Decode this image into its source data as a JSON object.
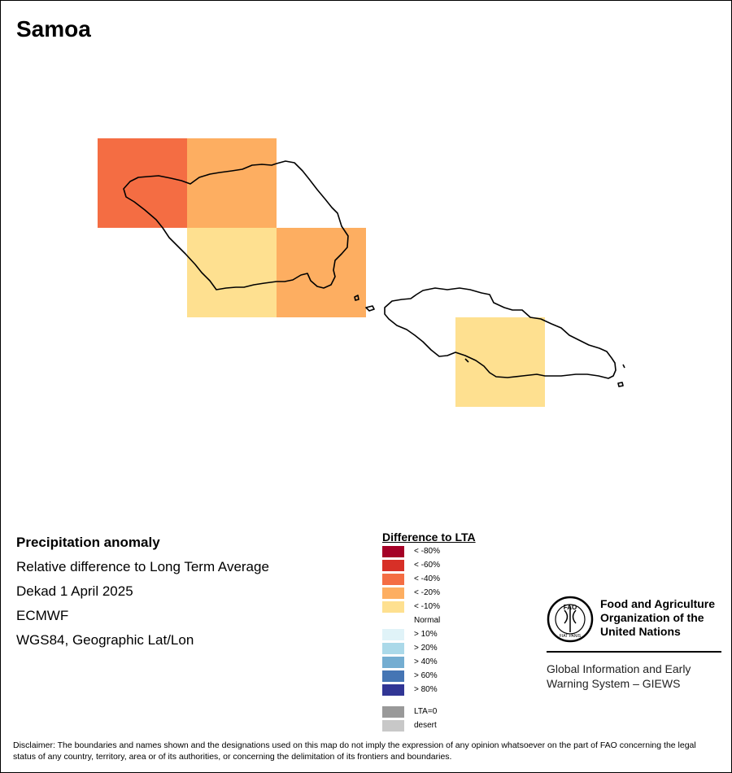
{
  "map": {
    "title": "Samoa",
    "cells": [
      {
        "name": "cell-savaii-west",
        "fill": "#f46d43"
      },
      {
        "name": "cell-savaii-north",
        "fill": "#fdae61"
      },
      {
        "name": "cell-savaii-south",
        "fill": "#fee090"
      },
      {
        "name": "cell-savaii-east",
        "fill": "#fdae61"
      },
      {
        "name": "cell-upolu-south",
        "fill": "#fee090"
      }
    ]
  },
  "info": {
    "heading": "Precipitation anomaly",
    "line1": "Relative difference to Long Term Average",
    "line2": "Dekad 1 April 2025",
    "line3": "ECMWF",
    "line4": "WGS84, Geographic Lat/Lon"
  },
  "legend": {
    "title": "Difference to LTA",
    "items": [
      {
        "label": "< -80%",
        "color": "#a50026"
      },
      {
        "label": "< -60%",
        "color": "#d73027"
      },
      {
        "label": "< -40%",
        "color": "#f46d43"
      },
      {
        "label": "< -20%",
        "color": "#fdae61"
      },
      {
        "label": "< -10%",
        "color": "#fee090"
      },
      {
        "label": "Normal",
        "color": "#ffffff"
      },
      {
        "label": "> 10%",
        "color": "#e0f3f8"
      },
      {
        "label": "> 20%",
        "color": "#abd9e9"
      },
      {
        "label": "> 40%",
        "color": "#74add1"
      },
      {
        "label": "> 60%",
        "color": "#4575b4"
      },
      {
        "label": "> 80%",
        "color": "#313695"
      }
    ],
    "extra": [
      {
        "label": "LTA=0",
        "color": "#999999"
      },
      {
        "label": "desert",
        "color": "#c8c8c8"
      }
    ]
  },
  "logo": {
    "org_name_1": "Food and Agriculture",
    "org_name_2": "Organization of the",
    "org_name_3": "United Nations",
    "emblem_text": "FAO",
    "emblem_motto": "FIAT PANIS",
    "giews_1": "Global Information and Early",
    "giews_2": "Warning System – GIEWS"
  },
  "disclaimer": "Disclaimer: The boundaries and names shown and the designations used on this map do not imply the expression of any opinion whatsoever on the part of FAO concerning the legal status of any country, territory, area or of its authorities, or concerning the delimitation of its frontiers and boundaries."
}
